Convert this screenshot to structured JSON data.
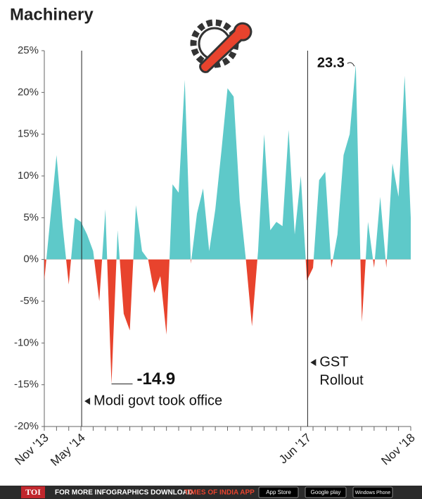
{
  "chart_data": {
    "type": "area",
    "title": "Machinery",
    "categories": [
      "Nov '13",
      null,
      null,
      null,
      null,
      null,
      "May '14",
      null,
      null,
      null,
      null,
      null,
      null,
      null,
      null,
      null,
      null,
      null,
      null,
      null,
      null,
      null,
      null,
      null,
      null,
      null,
      null,
      null,
      null,
      null,
      null,
      null,
      null,
      null,
      null,
      null,
      null,
      null,
      null,
      null,
      null,
      null,
      null,
      "Jun '17",
      null,
      null,
      null,
      null,
      null,
      null,
      null,
      null,
      null,
      null,
      null,
      null,
      null,
      null,
      null,
      null,
      "Nov '18"
    ],
    "values": [
      -2.5,
      5,
      12.5,
      4,
      -3,
      5,
      4.5,
      3,
      1,
      -5,
      6,
      -14.9,
      3.5,
      -6.5,
      -8.5,
      6.5,
      1,
      0,
      -4,
      -2,
      -9,
      9,
      8,
      21.5,
      -0.5,
      5.5,
      8.5,
      1,
      6,
      13,
      20.5,
      19.5,
      7,
      0,
      -8,
      1,
      15,
      3.5,
      4.5,
      4,
      15.5,
      3,
      10,
      -2.5,
      -1,
      9.5,
      10.5,
      -1,
      3,
      12.5,
      15,
      23.3,
      -7.5,
      4.5,
      -1,
      7.5,
      -1,
      11.5,
      7.5,
      22,
      5
    ],
    "positive_color": "#5ec9c9",
    "negative_color": "#e8432d",
    "labeled": [
      11,
      51
    ],
    "markers": [
      {
        "category": "May '14",
        "label": [
          "Modi govt took office"
        ]
      },
      {
        "category": "Jun '17",
        "label": [
          "GST",
          "Rollout"
        ]
      }
    ],
    "ylim": [
      -20,
      25
    ],
    "yticks": [
      {
        "value": -20,
        "label": "-20%"
      },
      {
        "value": -15,
        "label": "-15%"
      },
      {
        "value": -10,
        "label": "-10%"
      },
      {
        "value": -5,
        "label": "-5%"
      },
      {
        "value": 0,
        "label": "0%"
      },
      {
        "value": 5,
        "label": "5%"
      },
      {
        "value": 10,
        "label": "10%"
      },
      {
        "value": 15,
        "label": "15%"
      },
      {
        "value": 20,
        "label": "20%"
      },
      {
        "value": 25,
        "label": "25%"
      }
    ]
  },
  "footer": {
    "logo": "TOI",
    "text": "FOR MORE  INFOGRAPHICS DOWNLOAD",
    "app": "TIMES OF INDIA  APP",
    "badges": [
      "App Store",
      "Google play",
      "Windows Phone"
    ]
  }
}
